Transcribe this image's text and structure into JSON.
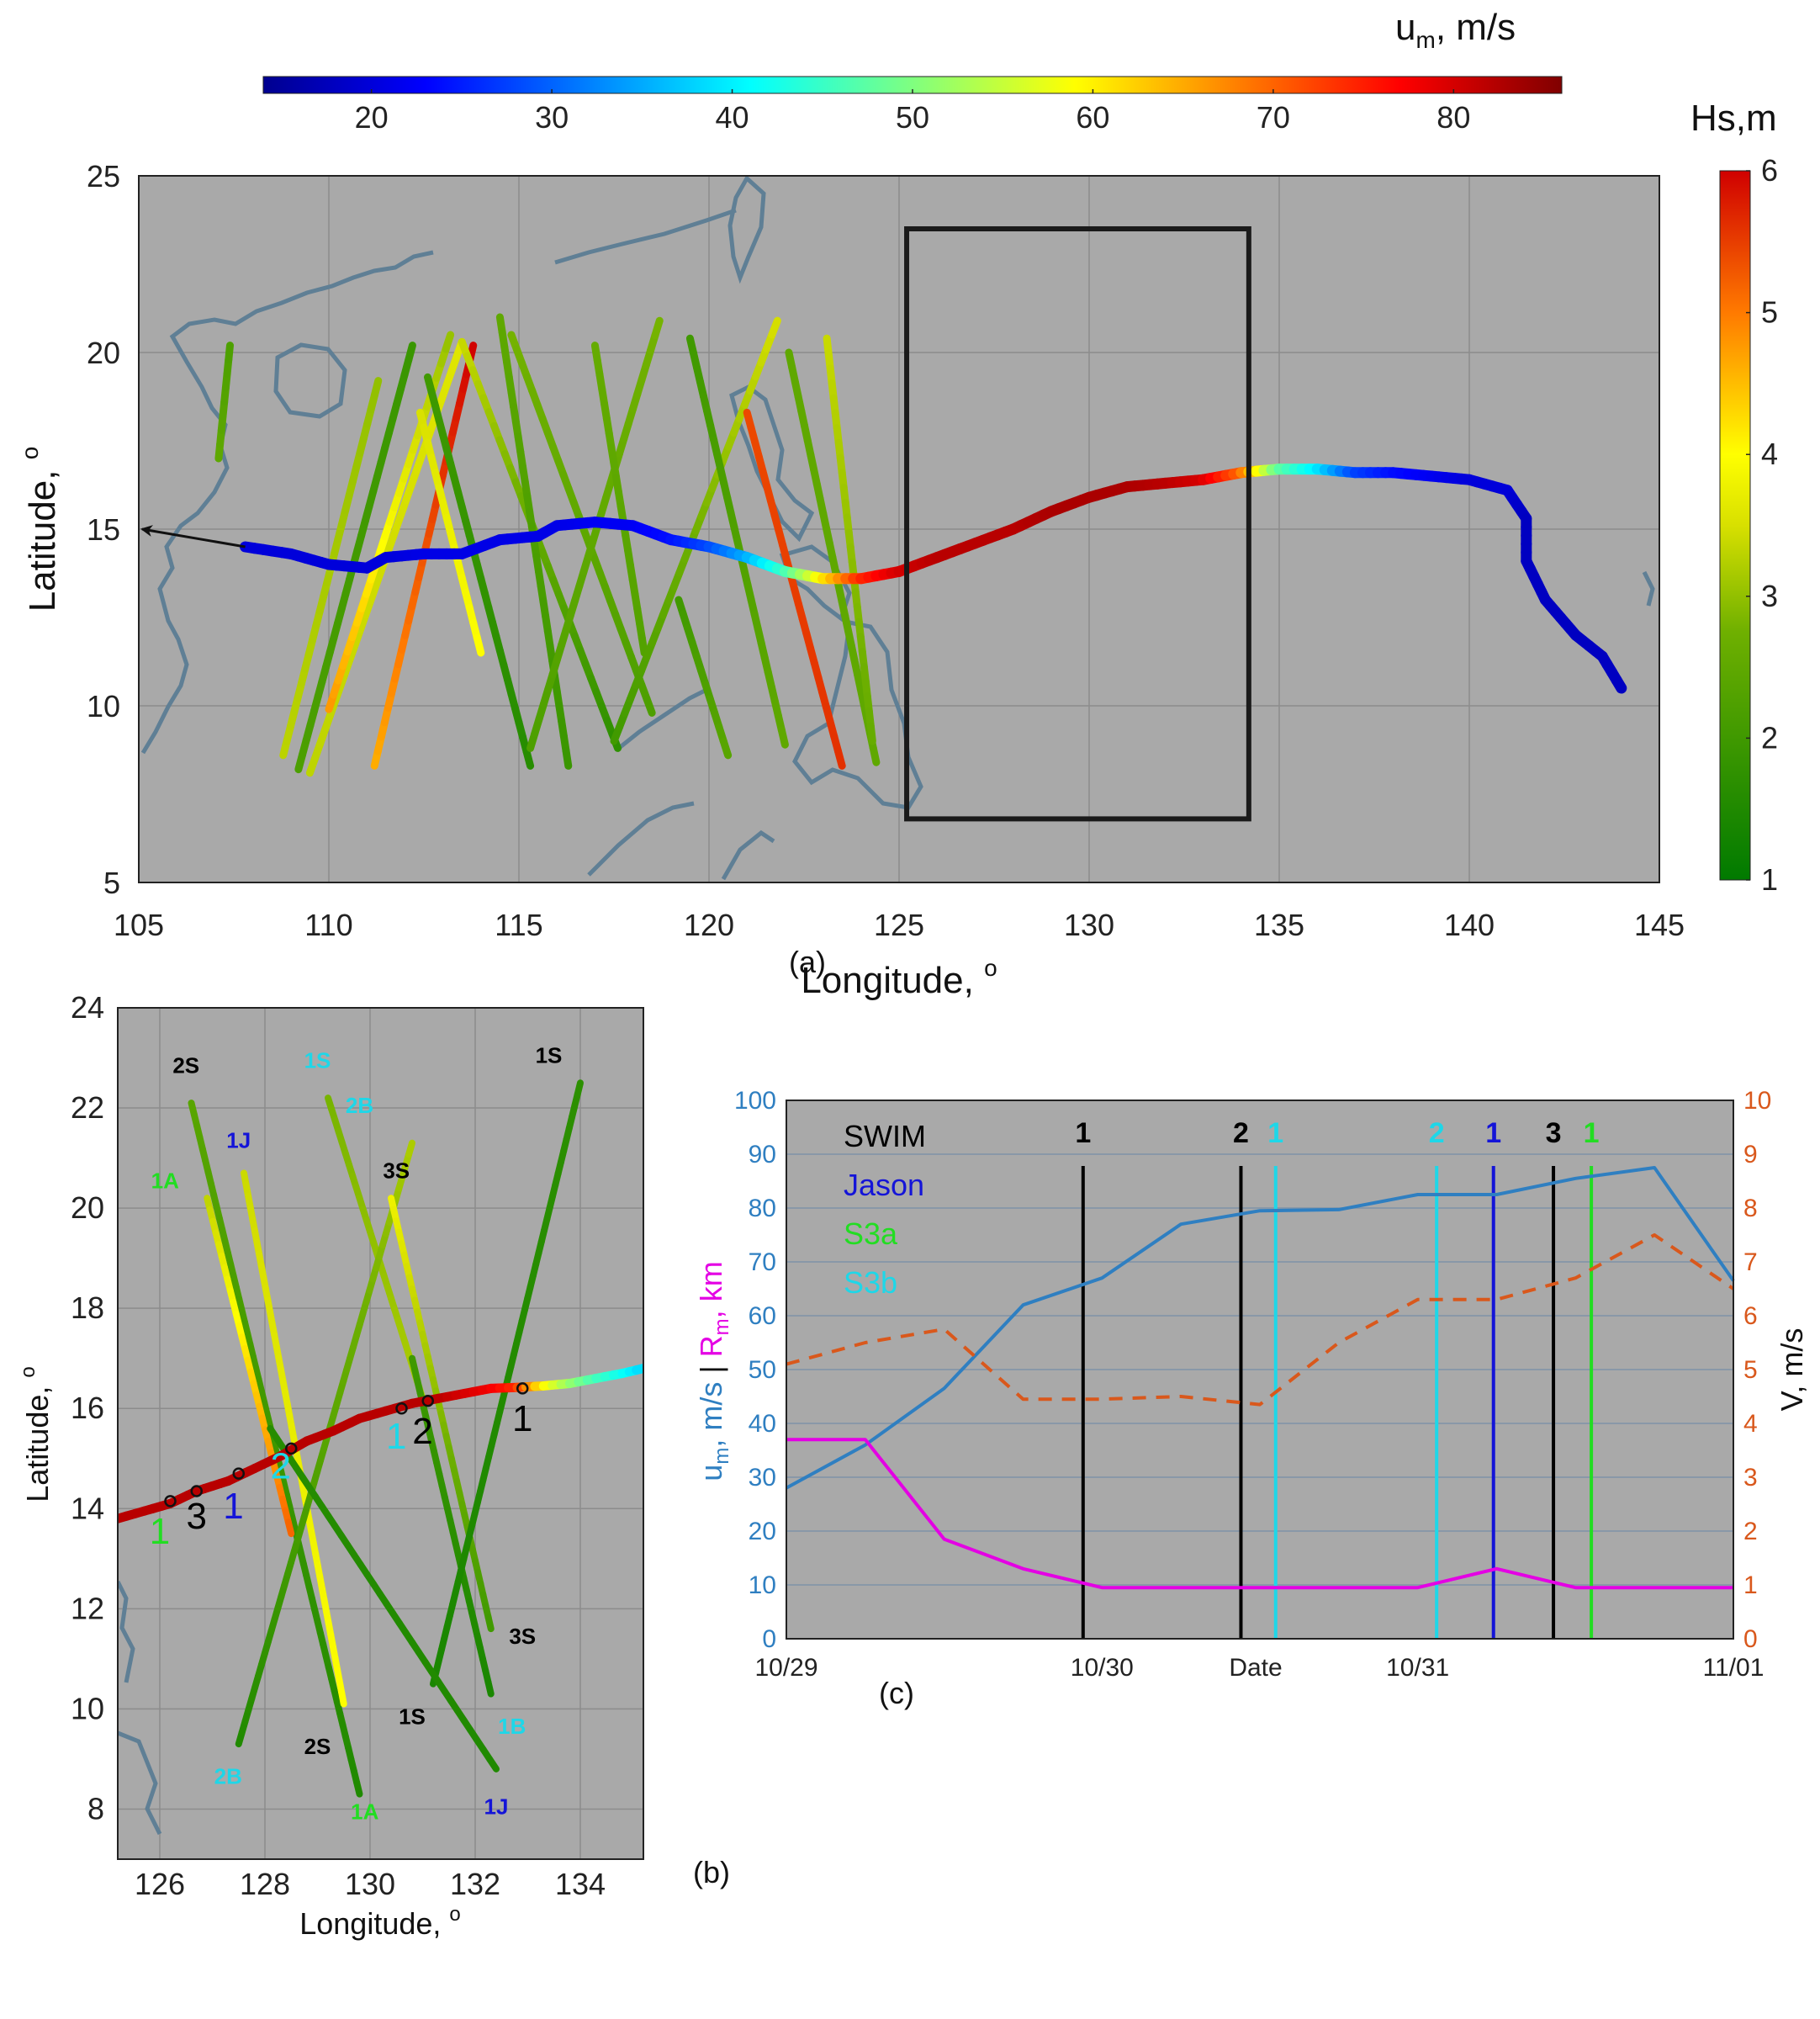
{
  "colors": {
    "axes_bg": "#a9a9a9",
    "grid": "#8c8c8c",
    "coast": "#5f7f95",
    "um_line": "#2f7fc1",
    "rm_line": "#e400e4",
    "v_line": "#d9581c",
    "swim": "#000000",
    "jason": "#1414d8",
    "s3a": "#22dd22",
    "s3b": "#1ed7e8"
  },
  "colorbars": {
    "um": {
      "title": "u",
      "title_sub": "m",
      "title_rest": ", m/s",
      "ticks": [
        "20",
        "30",
        "40",
        "50",
        "60",
        "70",
        "80"
      ],
      "range": [
        14,
        86
      ]
    },
    "hs": {
      "title": "Hs,m",
      "ticks": [
        "1",
        "2",
        "3",
        "4",
        "5",
        "6"
      ],
      "range": [
        1,
        6
      ]
    }
  },
  "chart_data": [
    {
      "panel": "a",
      "type": "scatter",
      "caption": "(a)",
      "xlabel": "Longitude, ",
      "xlabel_deg": "o",
      "ylabel": "Latitude, ",
      "ylabel_deg": "o",
      "xlim": [
        105,
        145
      ],
      "ylim": [
        5,
        25
      ],
      "xticks": [
        "105",
        "110",
        "115",
        "120",
        "125",
        "130",
        "135",
        "140",
        "145"
      ],
      "yticks": [
        "5",
        "10",
        "15",
        "20",
        "25"
      ],
      "box": {
        "lon": [
          125.2,
          134.2
        ],
        "lat": [
          6.8,
          23.5
        ]
      },
      "track": [
        [
          107.8,
          14.5
        ],
        [
          109,
          14.3
        ],
        [
          110,
          14
        ],
        [
          111,
          13.9
        ],
        [
          111.5,
          14.2
        ],
        [
          112.5,
          14.3
        ],
        [
          113.5,
          14.3
        ],
        [
          114.5,
          14.7
        ],
        [
          115.5,
          14.8
        ],
        [
          116,
          15.1
        ],
        [
          117,
          15.2
        ],
        [
          118,
          15.1
        ],
        [
          119,
          14.7
        ],
        [
          120,
          14.5
        ],
        [
          121,
          14.2
        ],
        [
          122,
          13.8
        ],
        [
          123,
          13.6
        ],
        [
          124,
          13.6
        ],
        [
          125,
          13.8
        ],
        [
          126,
          14.2
        ],
        [
          127,
          14.6
        ],
        [
          128,
          15
        ],
        [
          129,
          15.5
        ],
        [
          130,
          15.9
        ],
        [
          131,
          16.2
        ],
        [
          132,
          16.3
        ],
        [
          133,
          16.4
        ],
        [
          134,
          16.6
        ],
        [
          135,
          16.7
        ],
        [
          136,
          16.7
        ],
        [
          137,
          16.6
        ],
        [
          138,
          16.6
        ],
        [
          139,
          16.5
        ],
        [
          140,
          16.4
        ],
        [
          141,
          16.1
        ],
        [
          141.5,
          15.3
        ],
        [
          141.5,
          14.1
        ],
        [
          142,
          13
        ],
        [
          142.8,
          12
        ],
        [
          143.5,
          11.4
        ],
        [
          144,
          10.5
        ]
      ],
      "track_um": [
        20,
        20,
        20,
        20,
        20,
        21,
        21,
        21,
        21,
        21,
        22,
        22,
        24,
        28,
        35,
        45,
        60,
        74,
        80,
        82,
        82,
        82,
        83,
        83,
        83,
        82,
        80,
        70,
        48,
        40,
        28,
        24,
        22,
        20,
        20,
        18,
        18,
        18,
        18,
        18,
        18
      ],
      "arrow": {
        "from": [
          107.8,
          14.5
        ],
        "to": [
          105,
          15
        ]
      },
      "passes": [
        {
          "lon": [
            107.1,
            107.4
          ],
          "lat": [
            17.0,
            20.2
          ],
          "hs": [
            2.5,
            2.2
          ]
        },
        {
          "lon": [
            108.8,
            111.3
          ],
          "lat": [
            8.6,
            19.2
          ],
          "hs": [
            3.3,
            3.0
          ]
        },
        {
          "lon": [
            109.2,
            112.2
          ],
          "lat": [
            8.2,
            20.2
          ],
          "hs": [
            2.2,
            1.9
          ]
        },
        {
          "lon": [
            109.5,
            113.5
          ],
          "lat": [
            8.1,
            20.3
          ],
          "hs": [
            3.3,
            3.6
          ]
        },
        {
          "lon": [
            110.0,
            113.2
          ],
          "lat": [
            9.9,
            20.5
          ],
          "hs": [
            4.8,
            3.0
          ]
        },
        {
          "lon": [
            111.2,
            113.8
          ],
          "lat": [
            8.3,
            20.2
          ],
          "hs": [
            4.6,
            6.0
          ]
        },
        {
          "lon": [
            112.4,
            114.0
          ],
          "lat": [
            18.3,
            11.5
          ],
          "hs": [
            3.5,
            4.0
          ]
        },
        {
          "lon": [
            112.6,
            115.3
          ],
          "lat": [
            19.3,
            8.3
          ],
          "hs": [
            2.0,
            1.6
          ]
        },
        {
          "lon": [
            113.5,
            117.6
          ],
          "lat": [
            20.3,
            8.8
          ],
          "hs": [
            3.4,
            1.7
          ]
        },
        {
          "lon": [
            114.5,
            116.3
          ],
          "lat": [
            21.0,
            8.3
          ],
          "hs": [
            2.5,
            1.9
          ]
        },
        {
          "lon": [
            114.8,
            118.5
          ],
          "lat": [
            20.5,
            9.8
          ],
          "hs": [
            2.8,
            2.2
          ]
        },
        {
          "lon": [
            115.3,
            118.7
          ],
          "lat": [
            8.8,
            20.9
          ],
          "hs": [
            2.2,
            2.8
          ]
        },
        {
          "lon": [
            117.0,
            118.3
          ],
          "lat": [
            20.2,
            11.5
          ],
          "hs": [
            2.6,
            2.3
          ]
        },
        {
          "lon": [
            117.5,
            121.8
          ],
          "lat": [
            9.0,
            20.9
          ],
          "hs": [
            2.0,
            3.5
          ]
        },
        {
          "lon": [
            119.5,
            122.0
          ],
          "lat": [
            20.4,
            8.9
          ],
          "hs": [
            2.0,
            2.5
          ]
        },
        {
          "lon": [
            119.2,
            120.5
          ],
          "lat": [
            13.0,
            8.6
          ],
          "hs": [
            2.0,
            2.4
          ]
        },
        {
          "lon": [
            121.0,
            123.5
          ],
          "lat": [
            18.3,
            8.3
          ],
          "hs": [
            5.4,
            5.6
          ]
        },
        {
          "lon": [
            122.1,
            124.4
          ],
          "lat": [
            20.0,
            8.4
          ],
          "hs": [
            2.5,
            2.5
          ]
        },
        {
          "lon": [
            123.1,
            124.3
          ],
          "lat": [
            20.4,
            9.0
          ],
          "hs": [
            3.4,
            2.6
          ]
        }
      ]
    },
    {
      "panel": "b",
      "type": "scatter",
      "caption": "(b)",
      "xlabel": "Longitude, ",
      "xlabel_deg": "o",
      "ylabel": "Latitude, ",
      "ylabel_deg": "o",
      "xlim": [
        125.2,
        135.2
      ],
      "ylim": [
        7,
        24
      ],
      "xticks": [
        "126",
        "128",
        "130",
        "132",
        "134"
      ],
      "yticks": [
        "8",
        "10",
        "12",
        "14",
        "16",
        "18",
        "20",
        "22",
        "24"
      ],
      "track": [
        [
          125.2,
          13.8
        ],
        [
          125.7,
          13.95
        ],
        [
          126.2,
          14.1
        ],
        [
          126.7,
          14.35
        ],
        [
          127.3,
          14.55
        ],
        [
          127.8,
          14.8
        ],
        [
          128.3,
          15.05
        ],
        [
          128.8,
          15.35
        ],
        [
          129.3,
          15.55
        ],
        [
          129.8,
          15.8
        ],
        [
          130.3,
          15.95
        ],
        [
          130.8,
          16.1
        ],
        [
          131.3,
          16.2
        ],
        [
          131.8,
          16.3
        ],
        [
          132.3,
          16.4
        ],
        [
          132.8,
          16.42
        ],
        [
          133.3,
          16.45
        ],
        [
          133.8,
          16.5
        ],
        [
          134.3,
          16.6
        ],
        [
          134.8,
          16.7
        ],
        [
          135.2,
          16.8
        ]
      ],
      "track_um": [
        82,
        82,
        82,
        82,
        82,
        82,
        82,
        82,
        82,
        82,
        82,
        82,
        82,
        80,
        78,
        74,
        60,
        52,
        46,
        42,
        38
      ],
      "markers": [
        {
          "lon": 126.2,
          "lat": 14.15
        },
        {
          "lon": 126.7,
          "lat": 14.35
        },
        {
          "lon": 127.5,
          "lat": 14.7
        },
        {
          "lon": 128.5,
          "lat": 15.2
        },
        {
          "lon": 130.6,
          "lat": 16.0
        },
        {
          "lon": 131.1,
          "lat": 16.15
        },
        {
          "lon": 132.9,
          "lat": 16.4
        }
      ],
      "passes": [
        {
          "lon": [
            126.6,
            129.8
          ],
          "lat": [
            22.1,
            8.3
          ],
          "hs": [
            2.4,
            1.5
          ]
        },
        {
          "lon": [
            127.6,
            129.5
          ],
          "lat": [
            20.7,
            10.1
          ],
          "hs": [
            3.4,
            4.0
          ]
        },
        {
          "lon": [
            126.9,
            128.5
          ],
          "lat": [
            20.2,
            13.5
          ],
          "hs": [
            3.3,
            5.2
          ]
        },
        {
          "lon": [
            129.2,
            131.0
          ],
          "lat": [
            22.2,
            16.2
          ],
          "hs": [
            2.8,
            3.2
          ]
        },
        {
          "lon": [
            127.5,
            130.8
          ],
          "lat": [
            9.3,
            21.3
          ],
          "hs": [
            1.5,
            3.2
          ]
        },
        {
          "lon": [
            130.4,
            132.3
          ],
          "lat": [
            20.2,
            11.6
          ],
          "hs": [
            3.8,
            2.0
          ]
        },
        {
          "lon": [
            130.8,
            132.3
          ],
          "lat": [
            17.0,
            10.3
          ],
          "hs": [
            2.0,
            1.4
          ]
        },
        {
          "lon": [
            131.2,
            134.0
          ],
          "lat": [
            10.5,
            22.5
          ],
          "hs": [
            1.4,
            1.7
          ]
        },
        {
          "lon": [
            128.1,
            132.4
          ],
          "lat": [
            15.6,
            8.8
          ],
          "hs": [
            1.6,
            1.5
          ]
        }
      ],
      "track_numbers": [
        {
          "text": "1",
          "color": "s3a",
          "lon": 126.0,
          "lat": 13.3
        },
        {
          "text": "3",
          "color": "swim",
          "lon": 126.7,
          "lat": 13.6
        },
        {
          "text": "1",
          "color": "jason",
          "lon": 127.4,
          "lat": 13.8
        },
        {
          "text": "2",
          "color": "s3b",
          "lon": 128.3,
          "lat": 14.6
        },
        {
          "text": "1",
          "color": "s3b",
          "lon": 130.5,
          "lat": 15.2
        },
        {
          "text": "2",
          "color": "swim",
          "lon": 131.0,
          "lat": 15.3
        },
        {
          "text": "1",
          "color": "swim",
          "lon": 132.9,
          "lat": 15.55
        }
      ],
      "pass_labels": [
        {
          "text": "2S",
          "color": "swim",
          "lon": 126.5,
          "lat": 22.7
        },
        {
          "text": "1S",
          "color": "s3b",
          "lon": 129.0,
          "lat": 22.8
        },
        {
          "text": "2B",
          "color": "s3b",
          "lon": 129.8,
          "lat": 21.9
        },
        {
          "text": "1S",
          "color": "swim",
          "lon": 133.4,
          "lat": 22.9
        },
        {
          "text": "1J",
          "color": "jason",
          "lon": 127.5,
          "lat": 21.2
        },
        {
          "text": "1A",
          "color": "s3a",
          "lon": 126.1,
          "lat": 20.4
        },
        {
          "text": "3S",
          "color": "swim",
          "lon": 130.5,
          "lat": 20.6
        },
        {
          "text": "3S",
          "color": "swim",
          "lon": 132.9,
          "lat": 11.3
        },
        {
          "text": "1S",
          "color": "swim",
          "lon": 130.8,
          "lat": 9.7
        },
        {
          "text": "1B",
          "color": "s3b",
          "lon": 132.7,
          "lat": 9.5
        },
        {
          "text": "2S",
          "color": "swim",
          "lon": 129.0,
          "lat": 9.1
        },
        {
          "text": "2B",
          "color": "s3b",
          "lon": 127.3,
          "lat": 8.5
        },
        {
          "text": "1A",
          "color": "s3a",
          "lon": 129.9,
          "lat": 7.8
        },
        {
          "text": "1J",
          "color": "jason",
          "lon": 132.4,
          "lat": 7.9
        }
      ]
    },
    {
      "panel": "c",
      "type": "line",
      "caption": "(c)",
      "xlabel": "Date",
      "xticks": [
        "10/29",
        "10/30",
        "10/31",
        "11/01"
      ],
      "xlim": [
        0,
        3
      ],
      "ylim_left": [
        0,
        100
      ],
      "ylim_right": [
        0,
        10
      ],
      "yticks_left": [
        "0",
        "10",
        "20",
        "30",
        "40",
        "50",
        "60",
        "70",
        "80",
        "90",
        "100"
      ],
      "yticks_right": [
        "0",
        "1",
        "2",
        "3",
        "4",
        "5",
        "6",
        "7",
        "8",
        "9",
        "10"
      ],
      "ylabel_left_um": "u",
      "ylabel_left_um_sub": "m",
      "ylabel_left_um_rest": ", m/s",
      "ylabel_left_sep": " | ",
      "ylabel_left_rm": "R",
      "ylabel_left_rm_sub": "m",
      "ylabel_left_rm_rest": ", km",
      "ylabel_right": "V, m/s",
      "legend": [
        {
          "text": "SWIM",
          "color": "swim"
        },
        {
          "text": "Jason",
          "color": "jason"
        },
        {
          "text": "S3a",
          "color": "s3a"
        },
        {
          "text": "S3b",
          "color": "s3b"
        }
      ],
      "series": [
        {
          "name": "u_m",
          "axis": "left",
          "color": "um_line",
          "dash": false,
          "x": [
            0,
            0.25,
            0.5,
            0.75,
            1.0,
            1.25,
            1.5,
            1.75,
            2.0,
            2.25,
            2.5,
            2.75,
            3.0
          ],
          "values": [
            28,
            36,
            46.5,
            62,
            67,
            77,
            79.5,
            79.7,
            82.5,
            82.5,
            85.5,
            87.5,
            66.5
          ]
        },
        {
          "name": "R_m",
          "axis": "left",
          "color": "rm_line",
          "dash": false,
          "x": [
            0,
            0.25,
            0.5,
            0.75,
            1.0,
            1.25,
            1.5,
            1.75,
            2.0,
            2.25,
            2.5,
            2.75,
            3.0
          ],
          "values": [
            37,
            37,
            18.5,
            13,
            9.5,
            9.5,
            9.5,
            9.5,
            9.5,
            13,
            9.5,
            9.5,
            9.5
          ]
        },
        {
          "name": "V",
          "axis": "right",
          "color": "v_line",
          "dash": true,
          "x": [
            0,
            0.25,
            0.5,
            0.75,
            1.0,
            1.25,
            1.5,
            1.75,
            2.0,
            2.25,
            2.5,
            2.75,
            3.0
          ],
          "values": [
            5.1,
            5.5,
            5.75,
            4.45,
            4.45,
            4.5,
            4.35,
            5.5,
            6.3,
            6.3,
            6.7,
            7.5,
            6.5
          ]
        }
      ],
      "vlines": [
        {
          "x": 0.94,
          "color": "swim",
          "label": "1"
        },
        {
          "x": 1.44,
          "color": "swim",
          "label": "2"
        },
        {
          "x": 1.55,
          "color": "s3b",
          "label": "1"
        },
        {
          "x": 2.06,
          "color": "s3b",
          "label": "2"
        },
        {
          "x": 2.24,
          "color": "jason",
          "label": "1"
        },
        {
          "x": 2.43,
          "color": "swim",
          "label": "3"
        },
        {
          "x": 2.55,
          "color": "s3a",
          "label": "1"
        }
      ]
    }
  ]
}
